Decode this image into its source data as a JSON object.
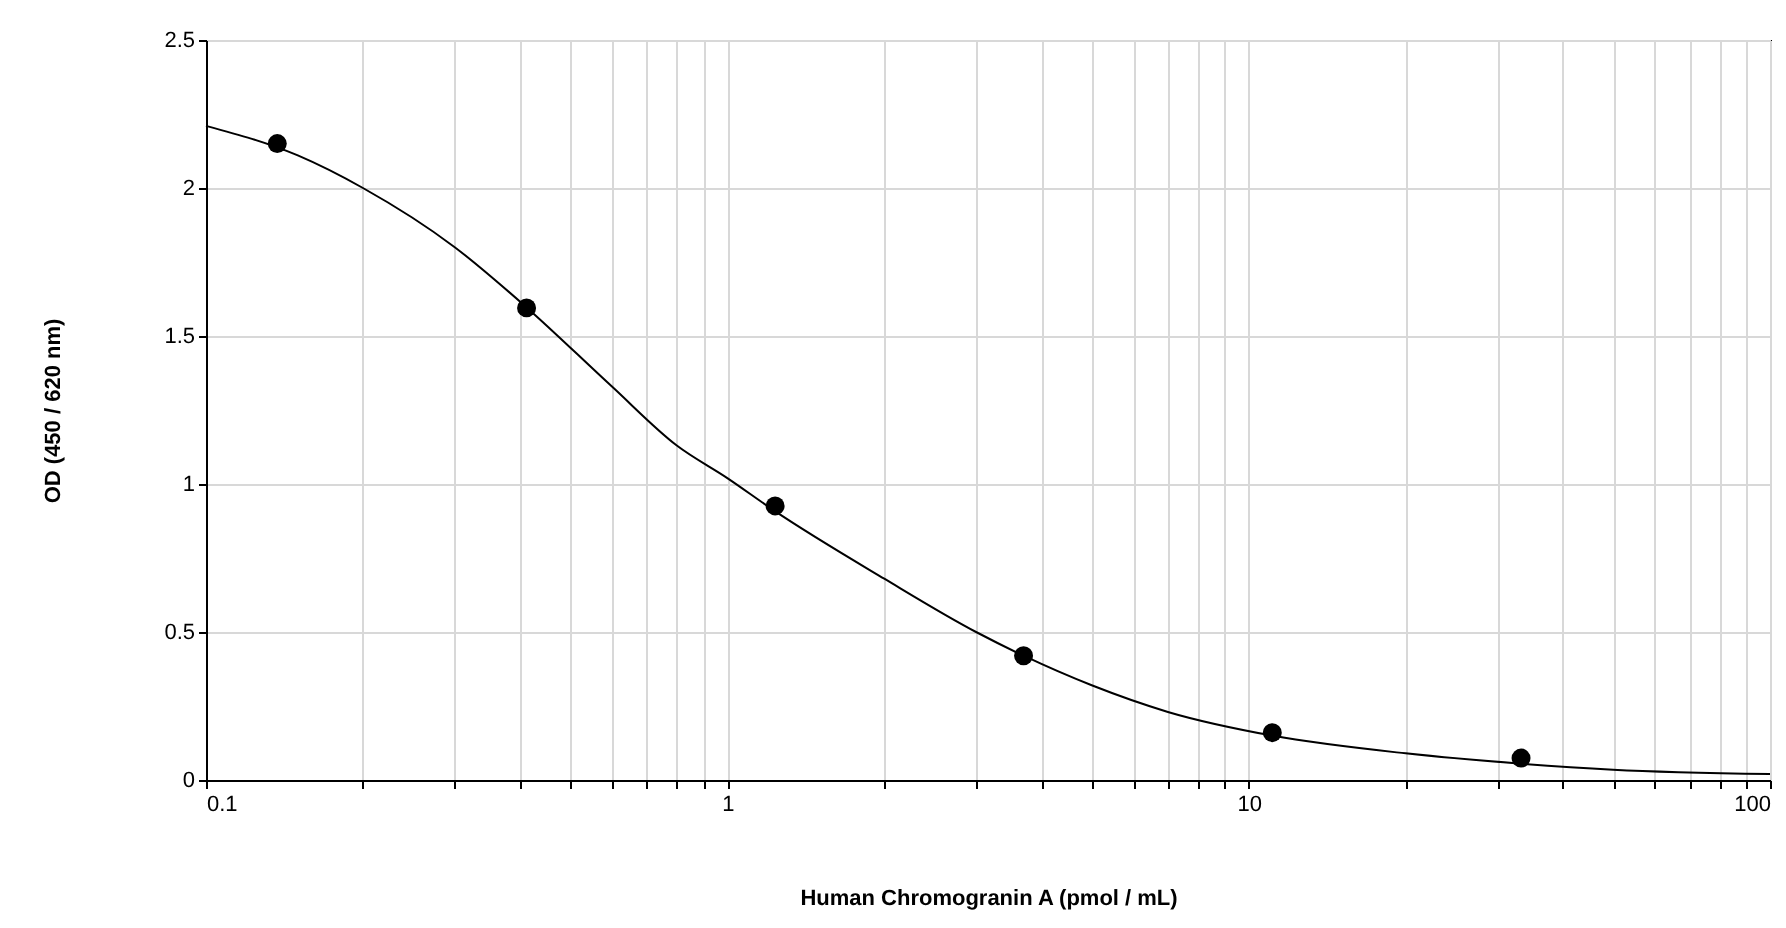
{
  "chart_data": {
    "type": "scatter",
    "xlabel": "Human Chromogranin A (pmol / mL)",
    "ylabel": "OD (450 / 620 nm)",
    "log": "x",
    "grid": true,
    "xlim": [
      0.1,
      100
    ],
    "ylim": [
      0,
      2.5
    ],
    "xticks": [
      0.1,
      {
        "value": 0.2,
        "label": null
      },
      {
        "value": 0.3,
        "label": null
      },
      {
        "value": 0.4,
        "label": null
      },
      {
        "value": 0.5,
        "label": null
      },
      {
        "value": 0.6,
        "label": null
      },
      {
        "value": 0.7,
        "label": null
      },
      {
        "value": 0.8,
        "label": null
      },
      {
        "value": 0.9,
        "label": null
      },
      1,
      {
        "value": 2,
        "label": null
      },
      {
        "value": 3,
        "label": null
      },
      {
        "value": 4,
        "label": null
      },
      {
        "value": 5,
        "label": null
      },
      {
        "value": 6,
        "label": null
      },
      {
        "value": 7,
        "label": null
      },
      {
        "value": 8,
        "label": null
      },
      {
        "value": 9,
        "label": null
      },
      10,
      {
        "value": 20,
        "label": null
      },
      {
        "value": 30,
        "label": null
      },
      {
        "value": 40,
        "label": null
      },
      {
        "value": 50,
        "label": null
      },
      {
        "value": 60,
        "label": null
      },
      {
        "value": 70,
        "label": null
      },
      {
        "value": 80,
        "label": null
      },
      {
        "value": 90,
        "label": null
      },
      100
    ],
    "yticks": [
      0,
      0.5,
      1,
      1.5,
      2,
      2.5
    ],
    "series": [
      {
        "type": "line",
        "color": "#000000",
        "x": [
          0.1,
          0.15,
          0.2,
          0.3,
          0.41,
          0.6,
          0.8,
          1,
          1.23,
          2,
          3,
          3.7,
          5,
          7,
          11.1,
          20,
          33.3,
          50,
          100
        ],
        "values": [
          2.21,
          2.11,
          2.0,
          1.8,
          1.6,
          1.33,
          1.13,
          1.02,
          0.91,
          0.68,
          0.5,
          0.42,
          0.32,
          0.23,
          0.15,
          0.09,
          0.055,
          0.035,
          0.02
        ]
      },
      {
        "type": "scatter",
        "marker": "circle",
        "color": "#000000",
        "x": [
          0.137,
          0.412,
          1.235,
          3.7,
          11.1,
          33.3
        ],
        "values": [
          2.15,
          1.595,
          0.926,
          0.42,
          0.16,
          0.074
        ]
      }
    ]
  }
}
